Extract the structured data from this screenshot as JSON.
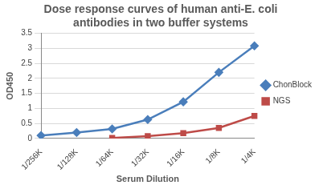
{
  "chart_data": {
    "type": "line",
    "title": "Dose response curves of human anti-E. coli antibodies in two buffer systems",
    "x_label": "Serum Dilution",
    "y_label": "OD450",
    "categories": [
      "1/256K",
      "1/128K",
      "1/64K",
      "1/32K",
      "1/16K",
      "1/8K",
      "1/4K"
    ],
    "series": [
      {
        "name": "ChonBlock",
        "color": "#4a7ebb",
        "marker": "diamond",
        "line_style": "solid",
        "values": [
          0.1,
          0.2,
          0.32,
          0.63,
          1.22,
          2.2,
          3.08
        ]
      },
      {
        "name": "NGS",
        "color": "#be4b48",
        "marker": "square",
        "line_style": "solid",
        "values": [
          null,
          null,
          0.02,
          0.08,
          0.18,
          0.35,
          0.75
        ]
      }
    ],
    "ylim": [
      0,
      3.5
    ],
    "yticks": [
      0,
      0.5,
      1,
      1.5,
      2,
      2.5,
      3,
      3.5
    ],
    "grid": true,
    "legend": "right"
  }
}
